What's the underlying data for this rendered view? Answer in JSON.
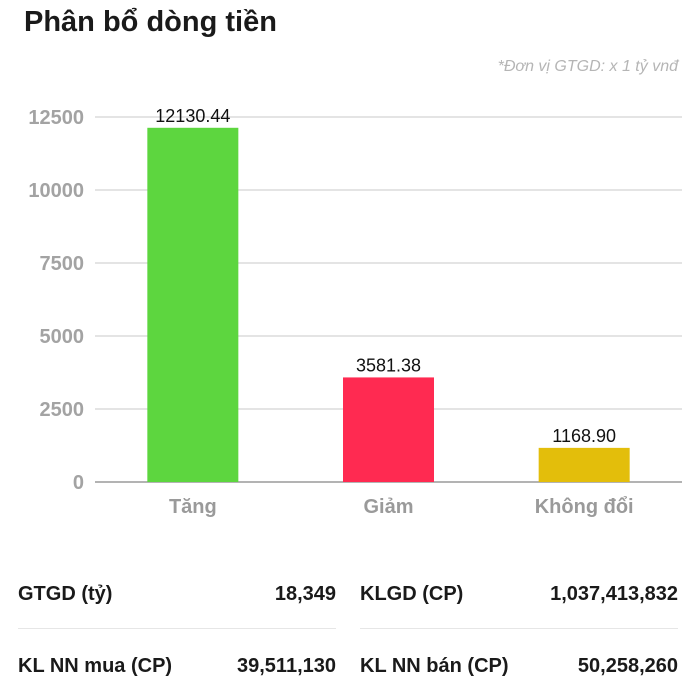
{
  "header": {
    "title": "Phân bổ dòng tiền",
    "unit_note": "*Đơn vị GTGD: x 1 tỷ vnđ"
  },
  "chart_data": {
    "type": "bar",
    "categories": [
      "Tăng",
      "Giảm",
      "Không đổi"
    ],
    "values": [
      12130.44,
      3581.38,
      1168.9
    ],
    "value_labels": [
      "12130.44",
      "3581.38",
      "1168.90"
    ],
    "colors": [
      "#5dd63f",
      "#ff2a51",
      "#e3be0b"
    ],
    "yticks": [
      "0",
      "2500",
      "5000",
      "7500",
      "10000",
      "12500"
    ],
    "ylim": [
      0,
      12500
    ],
    "grid": true
  },
  "stats": {
    "row1": {
      "left": {
        "label": "GTGD (tỷ)",
        "value": "18,349"
      },
      "right": {
        "label": "KLGD (CP)",
        "value": "1,037,413,832"
      }
    },
    "row2": {
      "left": {
        "label": "KL NN mua (CP)",
        "value": "39,511,130"
      },
      "right": {
        "label": "KL NN bán (CP)",
        "value": "50,258,260"
      }
    }
  }
}
